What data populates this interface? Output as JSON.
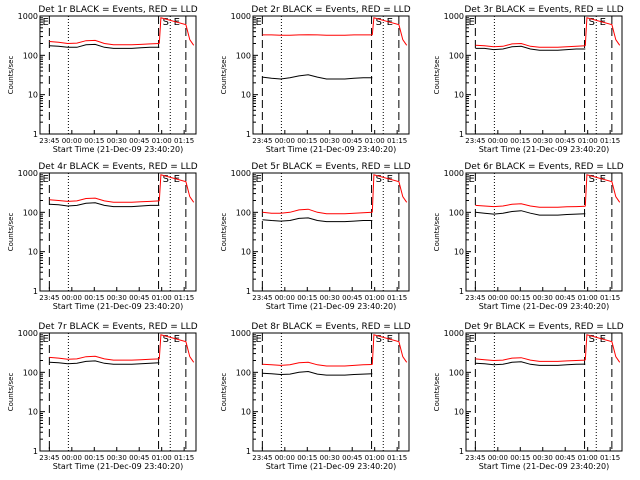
{
  "colors": {
    "background": "#ffffff",
    "events": "#000000",
    "lld": "#ff0000",
    "axes": "#000000"
  },
  "chart_data": [
    {
      "type": "line",
      "title": "Det 1r BLACK = Events, RED = LLD",
      "xlabel": "Start Time (21-Dec-09 23:40:20)",
      "ylabel": "Counts/sec",
      "scale": "log",
      "ylim": [
        1,
        1000
      ],
      "xticks": [
        "23:45",
        "00:00",
        "00:15",
        "00:30",
        "00:45",
        "01:00",
        "01:15"
      ],
      "yticks": [
        "1",
        "10",
        "100",
        "1000"
      ],
      "markers": [
        "E",
        "S",
        "E"
      ],
      "series": [
        {
          "name": "Events",
          "color": "#000000",
          "values": [
            175,
            170,
            160,
            160,
            185,
            190,
            160,
            150,
            150,
            150,
            155,
            160,
            160
          ]
        },
        {
          "name": "LLD",
          "color": "#ff0000",
          "values": [
            225,
            215,
            200,
            205,
            235,
            240,
            200,
            185,
            185,
            185,
            190,
            195,
            200
          ]
        }
      ]
    },
    {
      "type": "line",
      "title": "Det 2r BLACK = Events, RED = LLD",
      "xlabel": "Start Time (21-Dec-09 23:40:20)",
      "ylabel": "Counts/sec",
      "scale": "log",
      "ylim": [
        1,
        1000
      ],
      "xticks": [
        "23:45",
        "00:00",
        "00:15",
        "00:30",
        "00:45",
        "01:00",
        "01:15"
      ],
      "yticks": [
        "1",
        "10",
        "100",
        "1000"
      ],
      "markers": [
        "E",
        "S",
        "E"
      ],
      "series": [
        {
          "name": "Events",
          "color": "#000000",
          "values": [
            28,
            26,
            25,
            27,
            30,
            32,
            28,
            25,
            25,
            25,
            26,
            27,
            27
          ]
        },
        {
          "name": "LLD",
          "color": "#ff0000",
          "values": [
            330,
            330,
            325,
            325,
            330,
            335,
            330,
            325,
            325,
            325,
            330,
            330,
            330
          ]
        }
      ]
    },
    {
      "type": "line",
      "title": "Det 3r BLACK = Events, RED = LLD",
      "xlabel": "Start Time (21-Dec-09 23:40:20)",
      "ylabel": "Counts/sec",
      "scale": "log",
      "ylim": [
        1,
        1000
      ],
      "xticks": [
        "23:45",
        "00:00",
        "00:15",
        "00:30",
        "00:45",
        "01:00",
        "01:15"
      ],
      "yticks": [
        "1",
        "10",
        "100",
        "1000"
      ],
      "markers": [
        "E",
        "S",
        "E"
      ],
      "series": [
        {
          "name": "Events",
          "color": "#000000",
          "values": [
            150,
            150,
            140,
            145,
            165,
            170,
            145,
            135,
            135,
            135,
            140,
            145,
            145
          ]
        },
        {
          "name": "LLD",
          "color": "#ff0000",
          "values": [
            180,
            175,
            165,
            170,
            195,
            200,
            170,
            160,
            160,
            160,
            165,
            170,
            175
          ]
        }
      ]
    },
    {
      "type": "line",
      "title": "Det 4r BLACK = Events, RED = LLD",
      "xlabel": "Start Time (21-Dec-09 23:40:20)",
      "ylabel": "Counts/sec",
      "scale": "log",
      "ylim": [
        1,
        1000
      ],
      "xticks": [
        "23:45",
        "00:00",
        "00:15",
        "00:30",
        "00:45",
        "01:00",
        "01:15"
      ],
      "yticks": [
        "1",
        "10",
        "100",
        "1000"
      ],
      "markers": [
        "E",
        "S",
        "E"
      ],
      "series": [
        {
          "name": "Events",
          "color": "#000000",
          "values": [
            160,
            155,
            145,
            150,
            170,
            175,
            150,
            140,
            140,
            140,
            145,
            150,
            150
          ]
        },
        {
          "name": "LLD",
          "color": "#ff0000",
          "values": [
            210,
            200,
            190,
            195,
            225,
            230,
            195,
            180,
            180,
            180,
            185,
            190,
            195
          ]
        }
      ]
    },
    {
      "type": "line",
      "title": "Det 5r BLACK = Events, RED = LLD",
      "xlabel": "Start Time (21-Dec-09 23:40:20)",
      "ylabel": "Counts/sec",
      "scale": "log",
      "ylim": [
        1,
        1000
      ],
      "xticks": [
        "23:45",
        "00:00",
        "00:15",
        "00:30",
        "00:45",
        "01:00",
        "01:15"
      ],
      "yticks": [
        "1",
        "10",
        "100",
        "1000"
      ],
      "markers": [
        "E",
        "S",
        "E"
      ],
      "series": [
        {
          "name": "Events",
          "color": "#000000",
          "values": [
            65,
            62,
            60,
            62,
            70,
            72,
            62,
            58,
            58,
            58,
            60,
            62,
            62
          ]
        },
        {
          "name": "LLD",
          "color": "#ff0000",
          "values": [
            100,
            95,
            95,
            100,
            115,
            120,
            100,
            92,
            92,
            92,
            95,
            98,
            100
          ]
        }
      ]
    },
    {
      "type": "line",
      "title": "Det 6r BLACK = Events, RED = LLD",
      "xlabel": "Start Time (21-Dec-09 23:40:20)",
      "ylabel": "Counts/sec",
      "scale": "log",
      "ylim": [
        1,
        1000
      ],
      "xticks": [
        "23:45",
        "00:00",
        "00:15",
        "00:30",
        "00:45",
        "01:00",
        "01:15"
      ],
      "yticks": [
        "1",
        "10",
        "100",
        "1000"
      ],
      "markers": [
        "E",
        "S",
        "E"
      ],
      "series": [
        {
          "name": "Events",
          "color": "#000000",
          "values": [
            100,
            95,
            90,
            95,
            105,
            110,
            95,
            85,
            85,
            85,
            88,
            90,
            92
          ]
        },
        {
          "name": "LLD",
          "color": "#ff0000",
          "values": [
            150,
            145,
            140,
            145,
            160,
            165,
            145,
            135,
            135,
            135,
            138,
            140,
            142
          ]
        }
      ]
    },
    {
      "type": "line",
      "title": "Det 7r BLACK = Events, RED = LLD",
      "xlabel": "Start Time (21-Dec-09 23:40:20)",
      "ylabel": "Counts/sec",
      "scale": "log",
      "ylim": [
        1,
        1000
      ],
      "xticks": [
        "23:45",
        "00:00",
        "00:15",
        "00:30",
        "00:45",
        "01:00",
        "01:15"
      ],
      "yticks": [
        "1",
        "10",
        "100",
        "1000"
      ],
      "markers": [
        "E",
        "S",
        "E"
      ],
      "series": [
        {
          "name": "Events",
          "color": "#000000",
          "values": [
            180,
            175,
            165,
            170,
            190,
            195,
            170,
            160,
            160,
            160,
            165,
            170,
            175
          ]
        },
        {
          "name": "LLD",
          "color": "#ff0000",
          "values": [
            240,
            230,
            215,
            220,
            250,
            255,
            220,
            205,
            205,
            205,
            210,
            215,
            220
          ]
        }
      ]
    },
    {
      "type": "line",
      "title": "Det 8r BLACK = Events, RED = LLD",
      "xlabel": "Start Time (21-Dec-09 23:40:20)",
      "ylabel": "Counts/sec",
      "scale": "log",
      "ylim": [
        1,
        1000
      ],
      "xticks": [
        "23:45",
        "00:00",
        "00:15",
        "00:30",
        "00:45",
        "01:00",
        "01:15"
      ],
      "yticks": [
        "1",
        "10",
        "100",
        "1000"
      ],
      "markers": [
        "E",
        "S",
        "E"
      ],
      "series": [
        {
          "name": "Events",
          "color": "#000000",
          "values": [
            95,
            92,
            88,
            90,
            100,
            105,
            90,
            85,
            85,
            85,
            88,
            90,
            92
          ]
        },
        {
          "name": "LLD",
          "color": "#ff0000",
          "values": [
            160,
            155,
            150,
            155,
            175,
            180,
            155,
            145,
            145,
            145,
            150,
            155,
            158
          ]
        }
      ]
    },
    {
      "type": "line",
      "title": "Det 9r BLACK = Events, RED = LLD",
      "xlabel": "Start Time (21-Dec-09 23:40:20)",
      "ylabel": "Counts/sec",
      "scale": "log",
      "ylim": [
        1,
        1000
      ],
      "xticks": [
        "23:45",
        "00:00",
        "00:15",
        "00:30",
        "00:45",
        "01:00",
        "01:15"
      ],
      "yticks": [
        "1",
        "10",
        "100",
        "1000"
      ],
      "markers": [
        "E",
        "S",
        "E"
      ],
      "series": [
        {
          "name": "Events",
          "color": "#000000",
          "values": [
            170,
            165,
            155,
            160,
            180,
            185,
            160,
            150,
            150,
            150,
            155,
            160,
            162
          ]
        },
        {
          "name": "LLD",
          "color": "#ff0000",
          "values": [
            220,
            210,
            200,
            205,
            230,
            235,
            205,
            190,
            190,
            190,
            195,
            200,
            205
          ]
        }
      ]
    }
  ]
}
